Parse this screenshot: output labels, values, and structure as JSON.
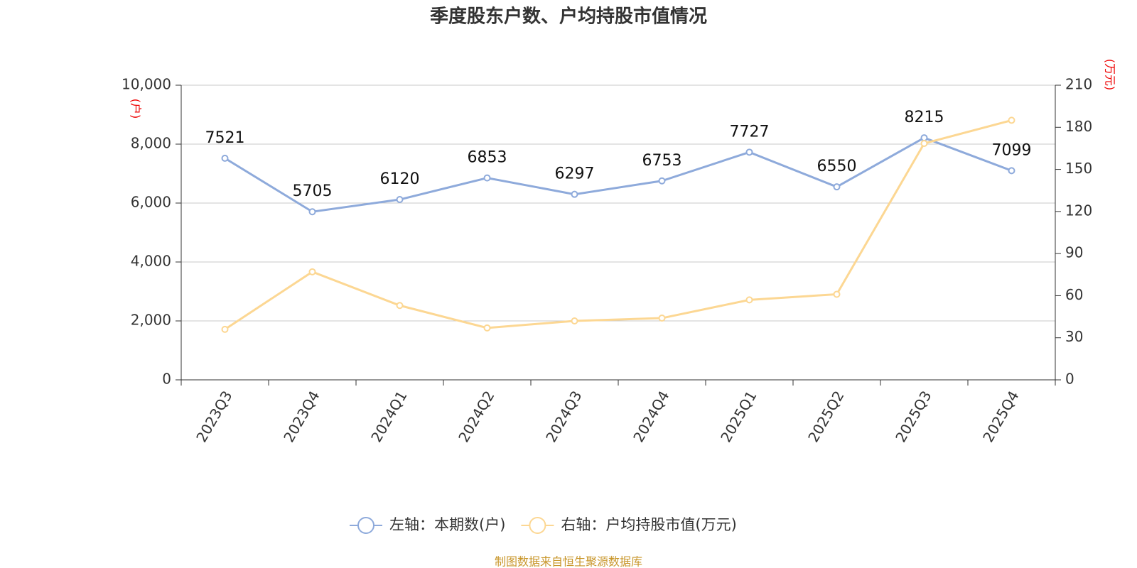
{
  "chart_data": {
    "type": "line",
    "title": "季度股东户数、户均持股市值情况",
    "y_label": "(户)",
    "y2_label": "(万元)",
    "categories": [
      "2023Q3",
      "2023Q4",
      "2024Q1",
      "2024Q2",
      "2024Q3",
      "2024Q4",
      "2025Q1",
      "2025Q2",
      "2025Q3",
      "2025Q4"
    ],
    "series": [
      {
        "name": "左轴：本期数(户)",
        "color": "#8eaadb",
        "values": [
          7521,
          5705,
          6120,
          6853,
          6297,
          6753,
          7727,
          6550,
          8215,
          7099
        ],
        "show_labels": true
      },
      {
        "name": "右轴：户均持股市值(万元)",
        "color": "#fcd793",
        "axis": "y2",
        "values": [
          36,
          77,
          53,
          37,
          42,
          44,
          57,
          61,
          168.5,
          185
        ],
        "show_labels": false
      }
    ],
    "ylim": [
      0,
      10000
    ],
    "yticks": [
      {
        "value": 0,
        "label": "0"
      },
      {
        "value": 2000,
        "label": "2,000"
      },
      {
        "value": 4000,
        "label": "4,000"
      },
      {
        "value": 6000,
        "label": "6,000"
      },
      {
        "value": 8000,
        "label": "8,000"
      },
      {
        "value": 10000,
        "label": "10,000"
      }
    ],
    "y2lim": [
      0,
      210
    ],
    "y2ticks": [
      0,
      30,
      60,
      90,
      120,
      150,
      180,
      210
    ],
    "grid": true,
    "source": "制图数据来自恒生聚源数据库"
  }
}
